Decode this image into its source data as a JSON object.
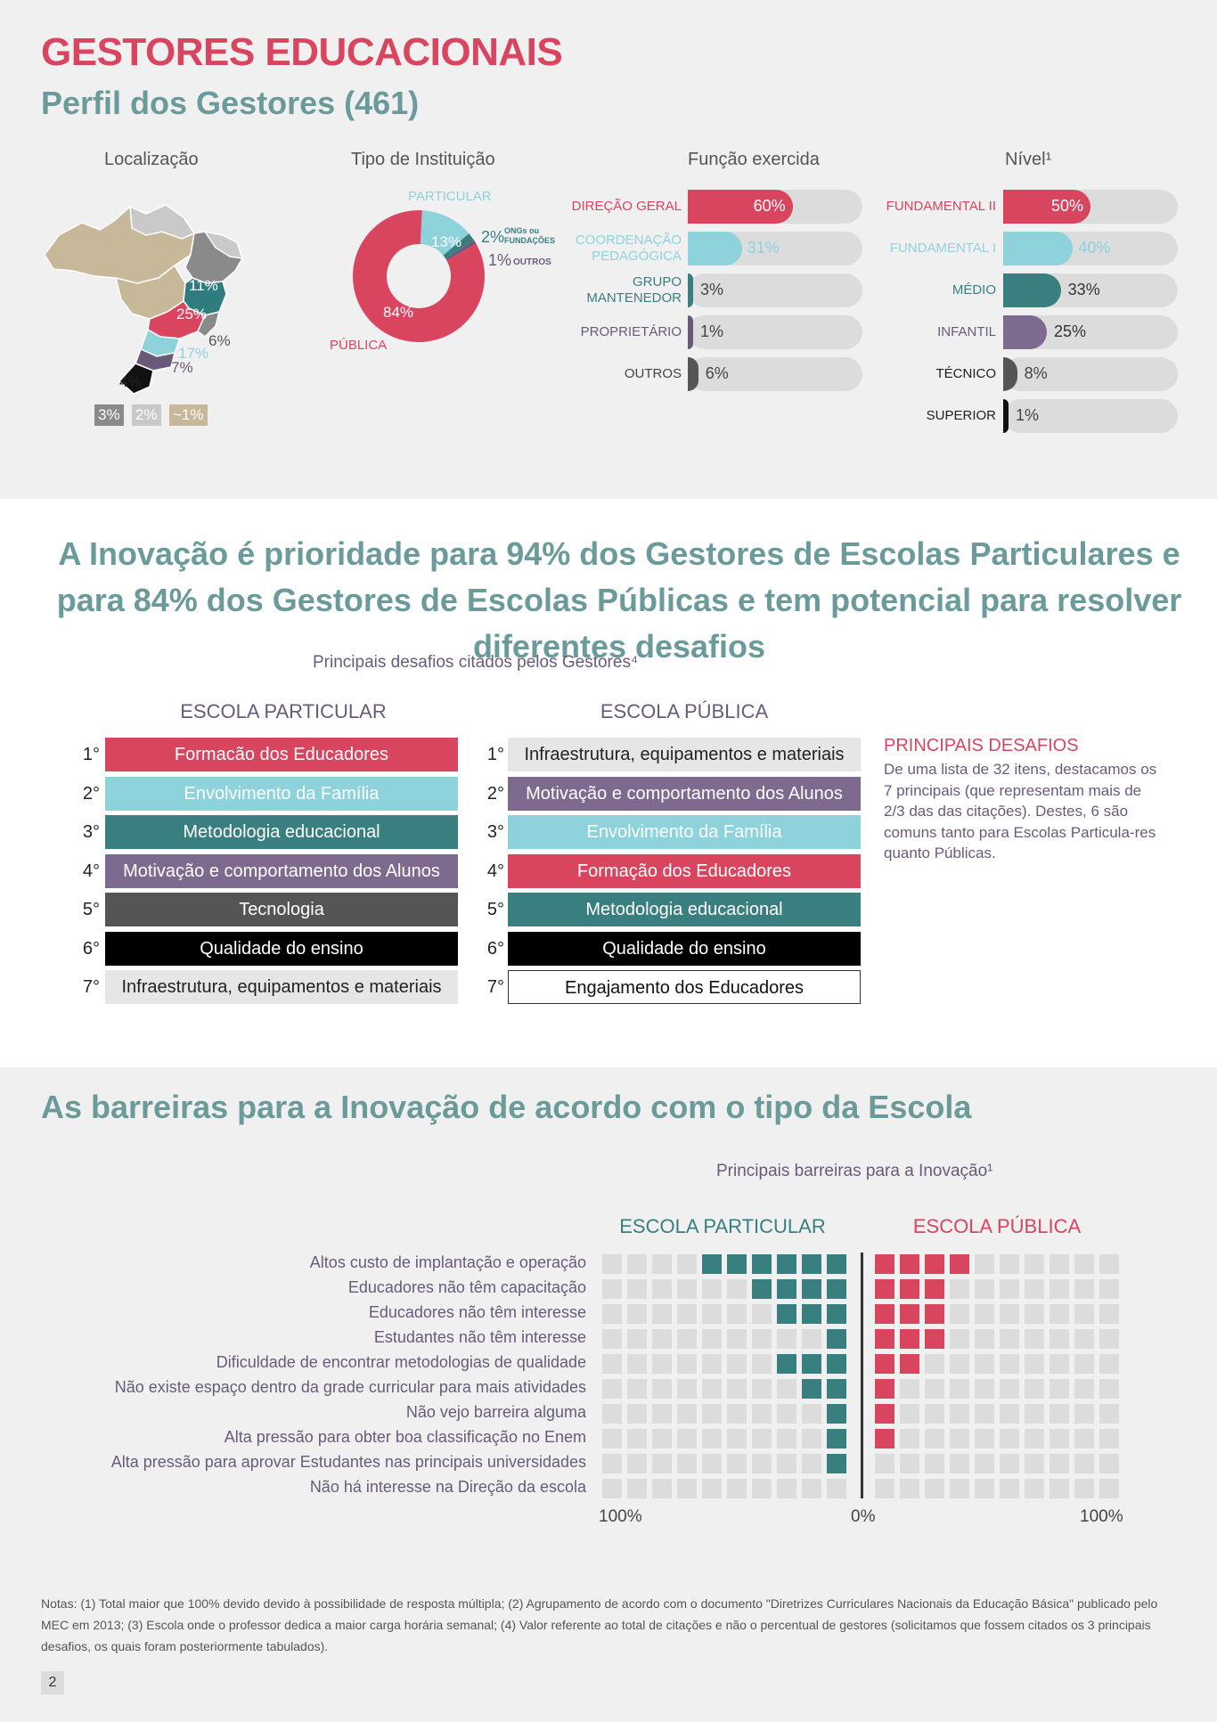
{
  "header": {
    "title": "GESTORES EDUCACIONAIS",
    "subtitle": "Perfil dos Gestores (461)"
  },
  "localizacao": {
    "heading": "Localização",
    "regions": [
      {
        "label": "11%",
        "color": "#2f7c7f"
      },
      {
        "label": "25%",
        "color": "#d9455f"
      },
      {
        "label": "6%",
        "color": "#8a8a8a"
      },
      {
        "label": "17%",
        "color": "#8ed3dc"
      },
      {
        "label": "7%",
        "color": "#6a5a7a"
      },
      {
        "label": "4%",
        "color": "#111111"
      }
    ],
    "legend": [
      {
        "label": "3%",
        "color": "#8a8a8a"
      },
      {
        "label": "2%",
        "color": "#c9c9c9"
      },
      {
        "label": "~1%",
        "color": "#c8b89a"
      }
    ]
  },
  "tipo_instituicao": {
    "heading": "Tipo de Instituição",
    "slices": [
      {
        "label": "PÚBLICA",
        "value": 84,
        "value_label": "84%",
        "color": "#d9455f"
      },
      {
        "label": "PARTICULAR",
        "value": 13,
        "value_label": "13%",
        "color": "#8ed3dc"
      },
      {
        "label": "ONGs ou FUNDAÇÕES",
        "value": 2,
        "value_label": "2%",
        "color": "#3a7f80"
      },
      {
        "label": "OUTROS",
        "value": 1,
        "value_label": "1%",
        "color": "#6a5a7a"
      }
    ]
  },
  "funcao": {
    "heading": "Função exercida",
    "items": [
      {
        "label": "DIREÇÃO GERAL",
        "value": 60,
        "value_label": "60%",
        "color": "#d9455f"
      },
      {
        "label": "COORDENAÇÃO PEDAGÓGICA",
        "value": 31,
        "value_label": "31%",
        "color": "#8ed3dc"
      },
      {
        "label": "GRUPO MANTENEDOR",
        "value": 3,
        "value_label": "3%",
        "color": "#3a7f80"
      },
      {
        "label": "PROPRIETÁRIO",
        "value": 1,
        "value_label": "1%",
        "color": "#6a5a7a"
      },
      {
        "label": "OUTROS",
        "value": 6,
        "value_label": "6%",
        "color": "#555555"
      }
    ]
  },
  "nivel": {
    "heading": "Nível¹",
    "items": [
      {
        "label": "FUNDAMENTAL II",
        "value": 50,
        "value_label": "50%",
        "color": "#d9455f"
      },
      {
        "label": "FUNDAMENTAL I",
        "value": 40,
        "value_label": "40%",
        "color": "#8ed3dc"
      },
      {
        "label": "MÉDIO",
        "value": 33,
        "value_label": "33%",
        "color": "#3a7f80"
      },
      {
        "label": "INFANTIL",
        "value": 25,
        "value_label": "25%",
        "color": "#7d6a8e"
      },
      {
        "label": "TÉCNICO",
        "value": 8,
        "value_label": "8%",
        "color": "#555555"
      },
      {
        "label": "SUPERIOR",
        "value": 1,
        "value_label": "1%",
        "color": "#111111"
      }
    ]
  },
  "inovacao": {
    "headline": "A Inovação é prioridade para 94% dos Gestores de Escolas Particulares e para 84% dos Gestores de Escolas Públicas e tem potencial para resolver diferentes desafios",
    "desafios_title": "Principais desafios citados pelos Gestores⁴",
    "particular_title": "ESCOLA PARTICULAR",
    "publica_title": "ESCOLA PÚBLICA",
    "particular": [
      {
        "rank": "1°",
        "label": "Formacão dos Educadores",
        "bg": "#d9455f",
        "fg": "#ffffff"
      },
      {
        "rank": "2°",
        "label": "Envolvimento da Família",
        "bg": "#8ed3dc",
        "fg": "#ffffff"
      },
      {
        "rank": "3°",
        "label": "Metodologia educacional",
        "bg": "#3a7f80",
        "fg": "#ffffff"
      },
      {
        "rank": "4°",
        "label": "Motivação e comportamento dos Alunos",
        "bg": "#7d6a8e",
        "fg": "#ffffff"
      },
      {
        "rank": "5°",
        "label": "Tecnologia",
        "bg": "#555555",
        "fg": "#ffffff"
      },
      {
        "rank": "6°",
        "label": "Qualidade do ensino",
        "bg": "#000000",
        "fg": "#ffffff"
      },
      {
        "rank": "7°",
        "label": "Infraestrutura, equipamentos e materiais",
        "bg": "#e6e6e6",
        "fg": "#222222"
      }
    ],
    "publica": [
      {
        "rank": "1°",
        "label": "Infraestrutura, equipamentos e materiais",
        "bg": "#e6e6e6",
        "fg": "#222222"
      },
      {
        "rank": "2°",
        "label": "Motivação e comportamento dos Alunos",
        "bg": "#7d6a8e",
        "fg": "#ffffff"
      },
      {
        "rank": "3°",
        "label": "Envolvimento da Família",
        "bg": "#8ed3dc",
        "fg": "#ffffff"
      },
      {
        "rank": "4°",
        "label": "Formação dos Educadores",
        "bg": "#d9455f",
        "fg": "#ffffff"
      },
      {
        "rank": "5°",
        "label": "Metodologia educacional",
        "bg": "#3a7f80",
        "fg": "#ffffff"
      },
      {
        "rank": "6°",
        "label": "Qualidade do ensino",
        "bg": "#000000",
        "fg": "#ffffff"
      },
      {
        "rank": "7°",
        "label": "Engajamento dos Educadores",
        "bg": "#ffffff",
        "fg": "#111111"
      }
    ],
    "principais_title": "PRINCIPAIS DESAFIOS",
    "principais_text": "De uma lista de 32 itens, destacamos os 7 principais (que representam mais de 2/3 das das citações). Destes, 6 são comuns tanto para Escolas Particula-res quanto Públicas."
  },
  "barreiras": {
    "headline": "As barreiras para a Inovação de acordo com o tipo da Escola",
    "chart_title": "Principais barreiras para a Inovação¹",
    "particular_title": "ESCOLA PARTICULAR",
    "publica_title": "ESCOLA PÚBLICA",
    "axis": {
      "left": "100%",
      "center": "0%",
      "right": "100%"
    }
  },
  "chart_data": {
    "type": "bar",
    "title": "Principais barreiras para a Inovação¹",
    "categories": [
      "Altos custo de implantação e operação",
      "Educadores não têm capacitação",
      "Educadores não têm interesse",
      "Estudantes não têm interesse",
      "Dificuldade de encontrar metodologias de qualidade",
      "Não existe espaço dentro da grade curricular para mais atividades",
      "Não vejo barreira alguma",
      "Alta pressão para obter boa classificação no Enem",
      "Alta pressão para aprovar Estudantes nas principais universidades",
      "Não há interesse na Direção da escola"
    ],
    "series": [
      {
        "name": "ESCOLA PARTICULAR",
        "color": "#3a7f80",
        "values": [
          60,
          40,
          30,
          10,
          30,
          20,
          10,
          10,
          10,
          0
        ]
      },
      {
        "name": "ESCOLA PÚBLICA",
        "color": "#d9455f",
        "values": [
          40,
          30,
          30,
          30,
          20,
          10,
          10,
          10,
          0,
          0
        ]
      }
    ],
    "xlim": [
      0,
      100
    ],
    "units_per_square": 10
  },
  "notes": "Notas: (1) Total maior que 100% devido devido à possibilidade de resposta múltipla; (2) Agrupamento de acordo com o documento \"Diretrizes Curriculares Nacionais da Educação Básica\" publicado pelo MEC em 2013; (3) Escola onde o professor dedica a maior carga horária semanal; (4) Valor referente ao total de citações e não o percentual de gestores (solicitamos que fossem citados os 3 principais desafios, os quais foram posteriormente tabulados).",
  "page_number": "2"
}
